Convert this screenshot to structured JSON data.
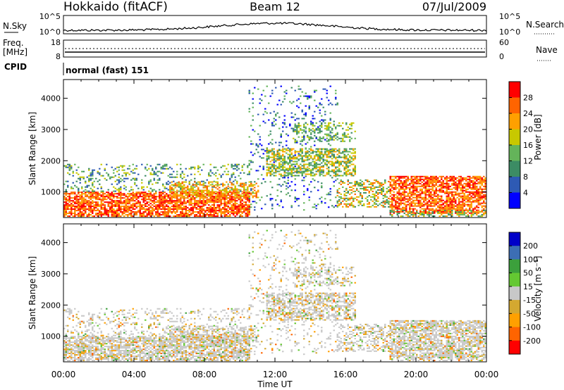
{
  "header": {
    "station": "Hokkaido (fitACF)",
    "beam": "Beam 12",
    "date": "07/Jul/2009"
  },
  "noise_panel": {
    "left_label": "N.Sky",
    "right_label": "N.Search",
    "left_ticks": [
      "10^5",
      "10^0"
    ],
    "right_ticks": [
      "10^5",
      "10^0"
    ]
  },
  "freq_panel": {
    "left_label_1": "Freq.",
    "left_label_2": "[MHz]",
    "right_label": "Nave",
    "left_ticks": [
      "18",
      "8"
    ],
    "right_ticks": [
      "60",
      "0"
    ]
  },
  "cpid_panel": {
    "label": "CPID",
    "text": "normal (fast) 151"
  },
  "colors": {
    "power": [
      "#0000ff",
      "#2e5ab4",
      "#3c8c64",
      "#64b45a",
      "#c8c800",
      "#ffa000",
      "#ff6400",
      "#ff0000"
    ],
    "velocity": [
      "#ff0000",
      "#ff6400",
      "#ffa000",
      "#d4a830",
      "#c8c8c8",
      "#64c832",
      "#3ca03c",
      "#3c6eb4",
      "#0000c8"
    ]
  },
  "chart_data": [
    {
      "type": "heatmap",
      "name": "Power",
      "ylabel": "Slant Range [km]",
      "xlabel": "",
      "x_ticks": [
        "00:00",
        "04:00",
        "08:00",
        "12:00",
        "16:00",
        "20:00",
        "00:00"
      ],
      "y_ticks": [
        1000,
        2000,
        3000,
        4000
      ],
      "xlim_hours": [
        0,
        24
      ],
      "ylim_km": [
        180,
        4600
      ],
      "colorbar_label": "Power [dB]",
      "colorbar_ticks": [
        4,
        8,
        12,
        16,
        20,
        24,
        28
      ],
      "colorbar_range": [
        0,
        32
      ]
    },
    {
      "type": "heatmap",
      "name": "Velocity",
      "ylabel": "Slant Range [km]",
      "xlabel": "Time UT",
      "x_ticks": [
        "00:00",
        "04:00",
        "08:00",
        "12:00",
        "16:00",
        "20:00",
        "00:00"
      ],
      "y_ticks": [
        1000,
        2000,
        3000,
        4000
      ],
      "xlim_hours": [
        0,
        24
      ],
      "ylim_km": [
        180,
        4600
      ],
      "colorbar_label": "Velocity [m s⁻¹]",
      "colorbar_ticks": [
        200,
        100,
        50,
        15,
        -15,
        -50,
        -100,
        -200
      ],
      "colorbar_range": [
        -250,
        250
      ]
    }
  ]
}
